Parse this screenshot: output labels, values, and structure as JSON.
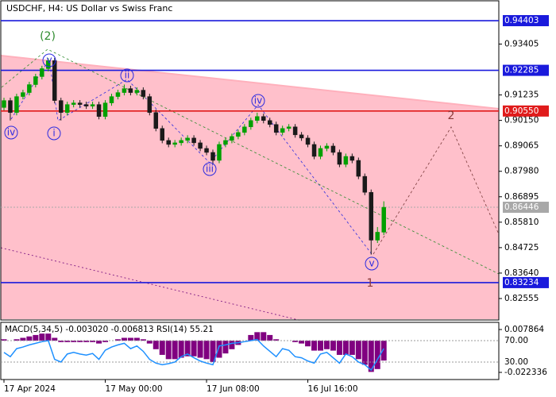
{
  "chart_data": {
    "type": "candlestick",
    "title": "USDCHF, H4:  US Dollar vs Swiss Franc",
    "categories": [
      "17 Apr 2024",
      null,
      null,
      null,
      null,
      null,
      null,
      null,
      null,
      null,
      null,
      null,
      null,
      null,
      null,
      null,
      "17 May 00:00",
      null,
      null,
      null,
      null,
      null,
      null,
      null,
      null,
      null,
      null,
      null,
      null,
      null,
      null,
      null,
      "17 Jun 08:00",
      null,
      null,
      null,
      null,
      null,
      null,
      null,
      null,
      null,
      null,
      null,
      null,
      null,
      null,
      null,
      "16 Jul 16:00",
      null,
      null,
      null,
      null,
      null,
      null,
      null,
      null,
      null,
      null,
      null,
      null
    ],
    "open": [
      0.907,
      0.90997,
      0.90486,
      0.91167,
      0.91337,
      0.91677,
      0.92018,
      0.92358,
      0.92698,
      0.90997,
      0.90486,
      0.90827,
      0.90895,
      0.90827,
      0.90759,
      0.90827,
      0.90316,
      0.90895,
      0.91167,
      0.91337,
      0.91507,
      0.91337,
      0.91439,
      0.91167,
      0.90486,
      0.89806,
      0.89296,
      0.89125,
      0.89194,
      0.89296,
      0.89398,
      0.89194,
      0.88955,
      0.88785,
      0.88445,
      0.89125,
      0.89296,
      0.89466,
      0.89636,
      0.89874,
      0.90146,
      0.90316,
      0.90146,
      0.89976,
      0.89636,
      0.89806,
      0.89874,
      0.89534,
      0.89398,
      0.89125,
      0.88615,
      0.88955,
      0.89057,
      0.88785,
      0.88275,
      0.88615,
      0.88445,
      0.87765,
      0.87084,
      0.85043,
      0.85383
    ],
    "high": [
      0.91117,
      0.91117,
      0.91287,
      0.91457,
      0.91797,
      0.92138,
      0.92478,
      0.928,
      0.92818,
      0.91117,
      0.90947,
      0.91015,
      0.91015,
      0.90947,
      0.90947,
      0.90947,
      0.91015,
      0.91287,
      0.91457,
      0.9168,
      0.91627,
      0.91559,
      0.91559,
      0.91287,
      0.90606,
      0.89926,
      0.89416,
      0.89314,
      0.89416,
      0.89518,
      0.89518,
      0.89314,
      0.89075,
      0.88905,
      0.89245,
      0.89416,
      0.89586,
      0.89756,
      0.89994,
      0.90266,
      0.9048,
      0.90436,
      0.90266,
      0.90096,
      0.89926,
      0.89994,
      0.89994,
      0.89654,
      0.89518,
      0.89245,
      0.89075,
      0.89177,
      0.89177,
      0.88905,
      0.88735,
      0.88735,
      0.88565,
      0.87885,
      0.87204,
      0.85603,
      0.867
    ],
    "low": [
      0.9058,
      0.90146,
      0.90366,
      0.91047,
      0.91217,
      0.91557,
      0.91898,
      0.92238,
      0.90877,
      0.90146,
      0.90366,
      0.90707,
      0.90707,
      0.90639,
      0.90639,
      0.90196,
      0.90196,
      0.90775,
      0.91047,
      0.91217,
      0.91217,
      0.91217,
      0.91047,
      0.90366,
      0.89686,
      0.89176,
      0.89005,
      0.89005,
      0.89074,
      0.89176,
      0.89074,
      0.88835,
      0.88665,
      0.8827,
      0.88325,
      0.89005,
      0.89176,
      0.89346,
      0.89516,
      0.89754,
      0.90026,
      0.90026,
      0.89856,
      0.89516,
      0.89516,
      0.89686,
      0.89414,
      0.89278,
      0.89005,
      0.88495,
      0.88495,
      0.88835,
      0.88665,
      0.88155,
      0.88155,
      0.88325,
      0.87645,
      0.86964,
      0.8443,
      0.84923,
      0.85263
    ],
    "close": [
      0.90997,
      0.90486,
      0.91167,
      0.91337,
      0.91677,
      0.92018,
      0.92358,
      0.92698,
      0.90997,
      0.90486,
      0.90827,
      0.90895,
      0.90827,
      0.90759,
      0.90827,
      0.90316,
      0.90895,
      0.91167,
      0.91337,
      0.91507,
      0.91337,
      0.91439,
      0.91167,
      0.90486,
      0.89806,
      0.89296,
      0.89125,
      0.89194,
      0.89296,
      0.89398,
      0.89194,
      0.88955,
      0.88785,
      0.88445,
      0.89125,
      0.89296,
      0.89466,
      0.89636,
      0.89874,
      0.90146,
      0.90316,
      0.90146,
      0.89976,
      0.89636,
      0.89806,
      0.89874,
      0.89534,
      0.89398,
      0.89125,
      0.88615,
      0.88955,
      0.89057,
      0.88785,
      0.88275,
      0.88615,
      0.88445,
      0.87765,
      0.87084,
      0.85043,
      0.85383,
      0.86446
    ],
    "up_color": "#00a000",
    "down_color": "#1a1a1a",
    "ylim": [
      0.8164,
      0.9525
    ],
    "yticks": [
      0.93405,
      {
        "value": 0.91235,
        "label": "0.91235"
      },
      {
        "value": 0.9015,
        "label": "0.90150"
      },
      0.89065,
      {
        "value": 0.8798,
        "label": "0.87980"
      },
      0.86895,
      {
        "value": 0.8581,
        "label": "0.85810"
      },
      0.84725,
      {
        "value": 0.8364,
        "label": "0.83640"
      },
      0.82555
    ],
    "levels": [
      {
        "value": 0.94403,
        "color": "#1a1adc"
      },
      {
        "value": 0.92285,
        "color": "#1a1adc"
      },
      {
        "value": 0.9055,
        "label": "0.90550",
        "color": "#e01b1b"
      },
      {
        "value": 0.83234,
        "color": "#1a1adc"
      },
      {
        "value": 0.86446,
        "color": "#a8a8a8",
        "style": "dotted"
      }
    ],
    "annotations": [
      "(2)",
      "v",
      "iv",
      "i",
      "ii",
      "iii",
      "iv",
      "v",
      "1",
      "2"
    ],
    "indicator_title": "MACD(5,34,5) -0.003020 -0.006813 RSI(14) 55.21",
    "macd": [
      0.001,
      0,
      0.001,
      0.002,
      0.003,
      0.004,
      0.005,
      0.005,
      0.002,
      -0.001,
      -0.001,
      -0.001,
      -0.001,
      -0.001,
      -0.001,
      -0.002,
      -0.001,
      0,
      0.001,
      0.002,
      0.002,
      0.002,
      0.001,
      -0.002,
      -0.006,
      -0.01,
      -0.013,
      -0.013,
      -0.012,
      -0.011,
      -0.011,
      -0.012,
      -0.013,
      -0.015,
      -0.012,
      -0.009,
      -0.006,
      -0.003,
      0,
      0.004,
      0.006,
      0.006,
      0.004,
      0.001,
      0,
      0,
      -0.001,
      -0.002,
      -0.004,
      -0.007,
      -0.007,
      -0.006,
      -0.007,
      -0.01,
      -0.01,
      -0.01,
      -0.013,
      -0.017,
      -0.022,
      -0.02,
      -0.014
    ],
    "macd_color": "#800080",
    "macd_lim": [
      -0.02737,
      0.0129
    ],
    "macd_ticks": [
      0.007864,
      -0.022336
    ],
    "rsi": [
      48,
      40,
      55,
      58,
      62,
      65,
      68,
      70,
      35,
      30,
      45,
      48,
      45,
      43,
      46,
      35,
      52,
      58,
      62,
      65,
      55,
      60,
      50,
      35,
      28,
      25,
      27,
      30,
      40,
      45,
      38,
      32,
      28,
      25,
      60,
      62,
      65,
      66,
      68,
      70,
      72,
      60,
      50,
      40,
      55,
      52,
      40,
      38,
      32,
      28,
      45,
      48,
      38,
      28,
      45,
      40,
      30,
      25,
      15,
      35,
      55.21
    ],
    "rsi_color": "#1e90ff",
    "rsi_lim": [
      -2.6,
      104
    ],
    "rsi_ticks": [
      {
        "value": 70,
        "label": "70.00"
      },
      {
        "value": 30,
        "label": "30.00"
      }
    ]
  }
}
